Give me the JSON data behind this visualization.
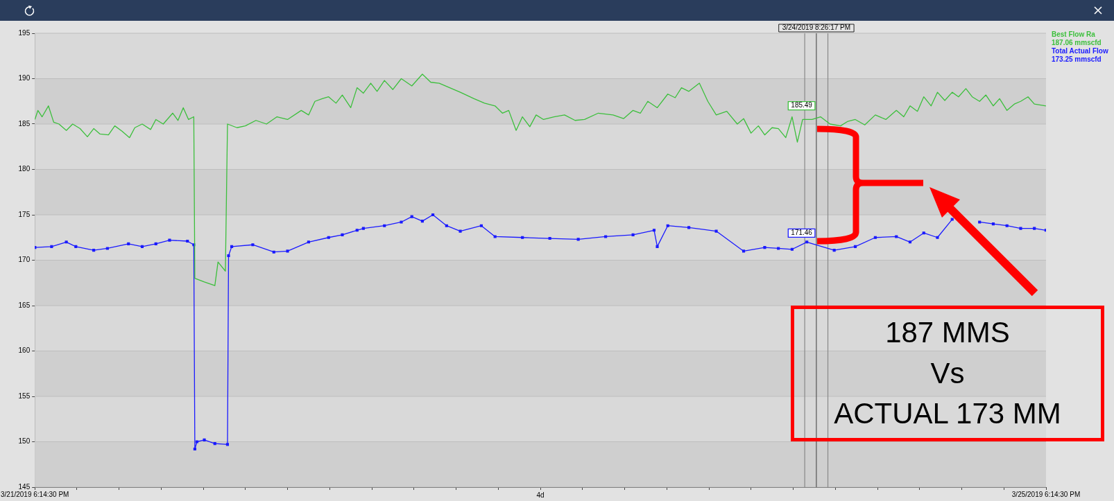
{
  "chart_data": {
    "type": "line",
    "xlabel": "4d",
    "xlim": [
      "2019-03-21T18:14:30",
      "2019-03-25T18:14:30"
    ],
    "xticks": [
      {
        "value": "2019-03-21T18:14:30",
        "label": "3/21/2019 6:14:30 PM"
      },
      {
        "value": "2019-03-21T22:14:30",
        "label": null
      },
      {
        "value": "2019-03-22T02:14:30",
        "label": null
      },
      {
        "value": "2019-03-22T06:14:30",
        "label": null
      },
      {
        "value": "2019-03-22T10:14:30",
        "label": null
      },
      {
        "value": "2019-03-22T14:14:30",
        "label": null
      },
      {
        "value": "2019-03-22T18:14:30",
        "label": null
      },
      {
        "value": "2019-03-22T22:14:30",
        "label": null
      },
      {
        "value": "2019-03-23T02:14:30",
        "label": null
      },
      {
        "value": "2019-03-23T06:14:30",
        "label": null
      },
      {
        "value": "2019-03-23T10:14:30",
        "label": null
      },
      {
        "value": "2019-03-23T14:14:30",
        "label": null
      },
      {
        "value": "2019-03-23T18:14:30",
        "label": null
      },
      {
        "value": "2019-03-23T22:14:30",
        "label": null
      },
      {
        "value": "2019-03-24T02:14:30",
        "label": null
      },
      {
        "value": "2019-03-24T06:14:30",
        "label": null
      },
      {
        "value": "2019-03-24T10:14:30",
        "label": null
      },
      {
        "value": "2019-03-24T14:14:30",
        "label": null
      },
      {
        "value": "2019-03-24T18:14:30",
        "label": null
      },
      {
        "value": "2019-03-24T22:14:30",
        "label": null
      },
      {
        "value": "2019-03-25T02:14:30",
        "label": null
      },
      {
        "value": "2019-03-25T06:14:30",
        "label": null
      },
      {
        "value": "2019-03-25T10:14:30",
        "label": null
      },
      {
        "value": "2019-03-25T14:14:30",
        "label": null
      },
      {
        "value": "2019-03-25T18:14:30",
        "label": "3/25/2019 6:14:30 PM"
      }
    ],
    "ylim": [
      145,
      195
    ],
    "yticks": [
      145,
      150,
      155,
      160,
      165,
      170,
      175,
      180,
      185,
      190,
      195
    ],
    "grid": "y",
    "legend": "top right",
    "line_style": "solid",
    "series": [
      {
        "name": "Best Flow Ra\n187.06 mmscfd",
        "color": "#3cbf3c",
        "marker": "none",
        "x": [
          "2019-03-21T18:15",
          "2019-03-21T18:32",
          "2019-03-21T18:56",
          "2019-03-21T19:32",
          "2019-03-21T20:02",
          "2019-03-21T20:32",
          "2019-03-21T21:14",
          "2019-03-21T21:50",
          "2019-03-21T22:32",
          "2019-03-21T23:14",
          "2019-03-21T23:50",
          "2019-03-22T00:26",
          "2019-03-22T01:14",
          "2019-03-22T01:50",
          "2019-03-22T02:32",
          "2019-03-22T03:14",
          "2019-03-22T03:44",
          "2019-03-22T04:26",
          "2019-03-22T05:14",
          "2019-03-22T05:44",
          "2019-03-22T06:26",
          "2019-03-22T07:20",
          "2019-03-22T07:50",
          "2019-03-22T08:20",
          "2019-03-22T08:50",
          "2019-03-22T09:20",
          "2019-03-22T09:26",
          "2019-03-22T10:20",
          "2019-03-22T11:20",
          "2019-03-22T11:38",
          "2019-03-22T12:20",
          "2019-03-22T12:32",
          "2019-03-22T13:26",
          "2019-03-22T14:14",
          "2019-03-22T15:14",
          "2019-03-22T16:14",
          "2019-03-22T17:14",
          "2019-03-22T18:14",
          "2019-03-22T19:32",
          "2019-03-22T20:14",
          "2019-03-22T20:50",
          "2019-03-22T21:32",
          "2019-03-22T22:08",
          "2019-03-22T22:50",
          "2019-03-22T23:26",
          "2019-03-23T00:14",
          "2019-03-23T00:50",
          "2019-03-23T01:26",
          "2019-03-23T02:08",
          "2019-03-23T02:44",
          "2019-03-23T03:26",
          "2019-03-23T04:14",
          "2019-03-23T05:02",
          "2019-03-23T06:02",
          "2019-03-23T07:02",
          "2019-03-23T07:50",
          "2019-03-23T08:38",
          "2019-03-23T09:38",
          "2019-03-23T10:38",
          "2019-03-23T11:56",
          "2019-03-23T12:56",
          "2019-03-23T13:56",
          "2019-03-23T14:38",
          "2019-03-23T15:14",
          "2019-03-23T15:56",
          "2019-03-23T16:32",
          "2019-03-23T17:14",
          "2019-03-23T17:50",
          "2019-03-23T18:32",
          "2019-03-23T19:32",
          "2019-03-23T20:32",
          "2019-03-23T21:32",
          "2019-03-23T22:26",
          "2019-03-23T23:44",
          "2019-03-24T01:08",
          "2019-03-24T02:08",
          "2019-03-24T03:02",
          "2019-03-24T03:44",
          "2019-03-24T04:26",
          "2019-03-24T05:20",
          "2019-03-24T06:20",
          "2019-03-24T07:02",
          "2019-03-24T07:38",
          "2019-03-24T08:20",
          "2019-03-24T09:20",
          "2019-03-24T10:08",
          "2019-03-24T10:56",
          "2019-03-24T11:56",
          "2019-03-24T12:56",
          "2019-03-24T13:32",
          "2019-03-24T14:14",
          "2019-03-24T14:56",
          "2019-03-24T15:32",
          "2019-03-24T16:14",
          "2019-03-24T16:50",
          "2019-03-24T17:32",
          "2019-03-24T18:08",
          "2019-03-24T18:38",
          "2019-03-24T19:08",
          "2019-03-24T20:02",
          "2019-03-24T20:50",
          "2019-03-24T21:44",
          "2019-03-24T22:44",
          "2019-03-24T23:26",
          "2019-03-25T00:08",
          "2019-03-25T01:02",
          "2019-03-25T02:02",
          "2019-03-25T03:02",
          "2019-03-25T04:02",
          "2019-03-25T04:44",
          "2019-03-25T05:20",
          "2019-03-25T06:02",
          "2019-03-25T06:38",
          "2019-03-25T07:20",
          "2019-03-25T07:56",
          "2019-03-25T08:38",
          "2019-03-25T09:20",
          "2019-03-25T09:56",
          "2019-03-25T10:38",
          "2019-03-25T11:14",
          "2019-03-25T11:56",
          "2019-03-25T12:32",
          "2019-03-25T13:14",
          "2019-03-25T13:50",
          "2019-03-25T14:32",
          "2019-03-25T15:14",
          "2019-03-25T15:50",
          "2019-03-25T16:32",
          "2019-03-25T17:08",
          "2019-03-25T18:14"
        ],
        "values": [
          185.5,
          186.5,
          185.8,
          187,
          185.2,
          185,
          184.3,
          185,
          184.5,
          183.6,
          184.5,
          183.9,
          183.8,
          184.8,
          184.2,
          183.5,
          184.6,
          185,
          184.4,
          185.5,
          185,
          186.2,
          185.4,
          186.8,
          185.5,
          185.8,
          168,
          167.6,
          167.2,
          169.8,
          168.8,
          185,
          184.6,
          184.8,
          185.4,
          185,
          185.8,
          185.5,
          186.5,
          186,
          187.5,
          187.8,
          188,
          187.3,
          188.2,
          186.8,
          189,
          188.4,
          189.5,
          188.6,
          189.8,
          188.8,
          190,
          189.2,
          190.5,
          189.6,
          189.5,
          189,
          188.5,
          187.8,
          187.3,
          187,
          186.2,
          186.5,
          184.3,
          185.8,
          184.7,
          186,
          185.5,
          185.8,
          186,
          185.4,
          185.5,
          186.2,
          186,
          185.6,
          186.5,
          186.2,
          187.5,
          186.8,
          188.3,
          187.9,
          189,
          188.6,
          189.5,
          187.5,
          186,
          186.4,
          185,
          185.6,
          184,
          184.8,
          183.8,
          184.6,
          184.5,
          183.5,
          185.8,
          183,
          185.5,
          185.5,
          185.8,
          185,
          184.8,
          185.3,
          185.5,
          184.9,
          186,
          185.5,
          186.5,
          185.8,
          187,
          186.4,
          188,
          187,
          188.5,
          187.6,
          188.5,
          188,
          188.9,
          188,
          187.5,
          188.2,
          187,
          187.8,
          186.5,
          187.2,
          187.5,
          188,
          187.2,
          187
        ]
      },
      {
        "name": "Total Actual Flow\n173.25 mmscfd",
        "color": "#1a1aff",
        "marker": "square",
        "x": [
          "2019-03-21T18:15",
          "2019-03-21T19:50",
          "2019-03-21T21:14",
          "2019-03-21T22:08",
          "2019-03-21T23:50",
          "2019-03-22T01:08",
          "2019-03-22T03:08",
          "2019-03-22T04:26",
          "2019-03-22T05:44",
          "2019-03-22T07:02",
          "2019-03-22T08:44",
          "2019-03-22T09:20",
          "2019-03-22T09:26",
          "2019-03-22T09:38",
          "2019-03-22T10:20",
          "2019-03-22T11:20",
          "2019-03-22T12:32",
          "2019-03-22T12:38",
          "2019-03-22T12:56",
          "2019-03-22T14:56",
          "2019-03-22T16:56",
          "2019-03-22T18:14",
          "2019-03-22T20:14",
          "2019-03-22T22:08",
          "2019-03-22T23:26",
          "2019-03-23T00:50",
          "2019-03-23T01:26",
          "2019-03-23T03:26",
          "2019-03-23T05:02",
          "2019-03-23T06:02",
          "2019-03-23T07:02",
          "2019-03-23T08:02",
          "2019-03-23T09:20",
          "2019-03-23T10:38",
          "2019-03-23T12:38",
          "2019-03-23T13:56",
          "2019-03-23T16:32",
          "2019-03-23T19:08",
          "2019-03-23T21:50",
          "2019-03-24T00:26",
          "2019-03-24T03:02",
          "2019-03-24T05:02",
          "2019-03-24T05:20",
          "2019-03-24T06:20",
          "2019-03-24T08:20",
          "2019-03-24T10:56",
          "2019-03-24T13:32",
          "2019-03-24T15:32",
          "2019-03-24T16:50",
          "2019-03-24T18:08",
          "2019-03-24T19:32",
          "2019-03-24T22:08",
          "2019-03-25T00:08",
          "2019-03-25T02:02",
          "2019-03-25T04:02",
          "2019-03-25T05:20",
          "2019-03-25T06:38",
          "2019-03-25T07:56",
          "2019-03-25T09:20",
          "2019-03-25T10:38",
          "2019-03-25T11:56",
          "2019-03-25T13:14",
          "2019-03-25T14:32",
          "2019-03-25T15:50",
          "2019-03-25T17:08",
          "2019-03-25T18:14"
        ],
        "values": [
          171.4,
          171.5,
          172,
          171.5,
          171.1,
          171.3,
          171.8,
          171.5,
          171.8,
          172.2,
          172.1,
          171.7,
          149.2,
          150,
          150.2,
          149.8,
          149.7,
          170.5,
          171.5,
          171.7,
          170.9,
          171,
          172,
          172.5,
          172.8,
          173.3,
          173.5,
          173.8,
          174.2,
          174.8,
          174.3,
          175,
          173.8,
          173.2,
          173.8,
          172.6,
          172.5,
          172.4,
          172.3,
          172.6,
          172.8,
          173.3,
          171.5,
          173.8,
          173.6,
          173.2,
          171,
          171.4,
          171.3,
          171.2,
          172,
          171.1,
          171.5,
          172.5,
          172.6,
          172,
          173,
          172.5,
          174.5,
          null,
          174.2,
          174,
          173.8,
          173.5,
          173.5,
          173.3
        ]
      }
    ],
    "ref_lines": [
      {
        "axis": "x",
        "value": "2019-03-24T19:20",
        "color": "#888888"
      },
      {
        "axis": "x",
        "value": "2019-03-24T20:26:17",
        "label": "3/24/2019 8:26:17 PM",
        "color": "#555555"
      },
      {
        "axis": "x",
        "value": "2019-03-24T21:32",
        "color": "#888888"
      }
    ],
    "annotations": [
      "187 MMS\nVs\nACTUAL 173 MM",
      {
        "text": "185.49",
        "x": "2019-03-24T20:26:17",
        "y": 185.49
      },
      {
        "text": "171.46",
        "x": "2019-03-24T20:26:17",
        "y": 171.46
      }
    ]
  }
}
